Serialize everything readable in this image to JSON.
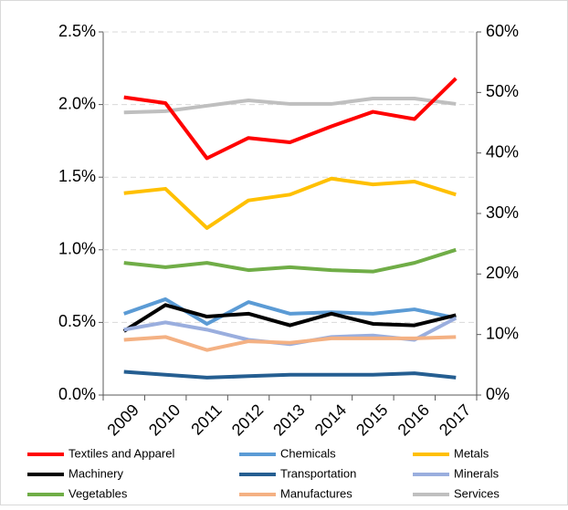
{
  "chart_data": {
    "type": "line",
    "categories": [
      "2009",
      "2010",
      "2011",
      "2012",
      "2013",
      "2014",
      "2015",
      "2016",
      "2017"
    ],
    "series": [
      {
        "name": "Textiles and Apparel",
        "color": "#ff0000",
        "values": [
          2.05,
          2.01,
          1.63,
          1.77,
          1.74,
          1.85,
          1.95,
          1.9,
          2.18
        ]
      },
      {
        "name": "Chemicals",
        "color": "#5b9bd5",
        "values": [
          0.56,
          0.66,
          0.49,
          0.64,
          0.56,
          0.57,
          0.56,
          0.59,
          0.53
        ]
      },
      {
        "name": "Metals",
        "color": "#ffc000",
        "values": [
          1.39,
          1.42,
          1.15,
          1.34,
          1.38,
          1.49,
          1.45,
          1.47,
          1.38
        ]
      },
      {
        "name": "Machinery",
        "color": "#000000",
        "values": [
          0.44,
          0.62,
          0.54,
          0.56,
          0.48,
          0.56,
          0.49,
          0.48,
          0.55
        ]
      },
      {
        "name": "Transportation",
        "color": "#255e91",
        "values": [
          0.16,
          0.14,
          0.12,
          0.13,
          0.14,
          0.14,
          0.14,
          0.15,
          0.12
        ]
      },
      {
        "name": "Minerals",
        "color": "#9aaede",
        "values": [
          0.45,
          0.5,
          0.45,
          0.38,
          0.35,
          0.4,
          0.41,
          0.38,
          0.53
        ]
      },
      {
        "name": "Vegetables",
        "color": "#70ad47",
        "values": [
          0.91,
          0.88,
          0.91,
          0.86,
          0.88,
          0.86,
          0.85,
          0.91,
          1.0
        ]
      },
      {
        "name": "Manufactures",
        "color": "#f4b183",
        "values": [
          0.38,
          0.4,
          0.31,
          0.37,
          0.36,
          0.39,
          0.39,
          0.39,
          0.4
        ]
      },
      {
        "name": "Services",
        "color": "#bfbfbf",
        "axis": "y2",
        "values": [
          46.7,
          46.9,
          47.8,
          48.7,
          48.1,
          48.1,
          49.0,
          49.0,
          48.1
        ]
      }
    ],
    "ylim": [
      0,
      2.5
    ],
    "yticks": [
      {
        "value": 0,
        "label": "0.0%"
      },
      {
        "value": 0.5,
        "label": "0.5%"
      },
      {
        "value": 1.0,
        "label": "1.0%"
      },
      {
        "value": 1.5,
        "label": "1.5%"
      },
      {
        "value": 2.0,
        "label": "2.0%"
      },
      {
        "value": 2.5,
        "label": "2.5%"
      }
    ],
    "y2lim": [
      0,
      60
    ],
    "y2ticks": [
      {
        "value": 0,
        "label": "0%"
      },
      {
        "value": 10,
        "label": "10%"
      },
      {
        "value": 20,
        "label": "20%"
      },
      {
        "value": 30,
        "label": "30%"
      },
      {
        "value": 40,
        "label": "40%"
      },
      {
        "value": 50,
        "label": "50%"
      },
      {
        "value": 60,
        "label": "60%"
      }
    ],
    "grid": true
  }
}
